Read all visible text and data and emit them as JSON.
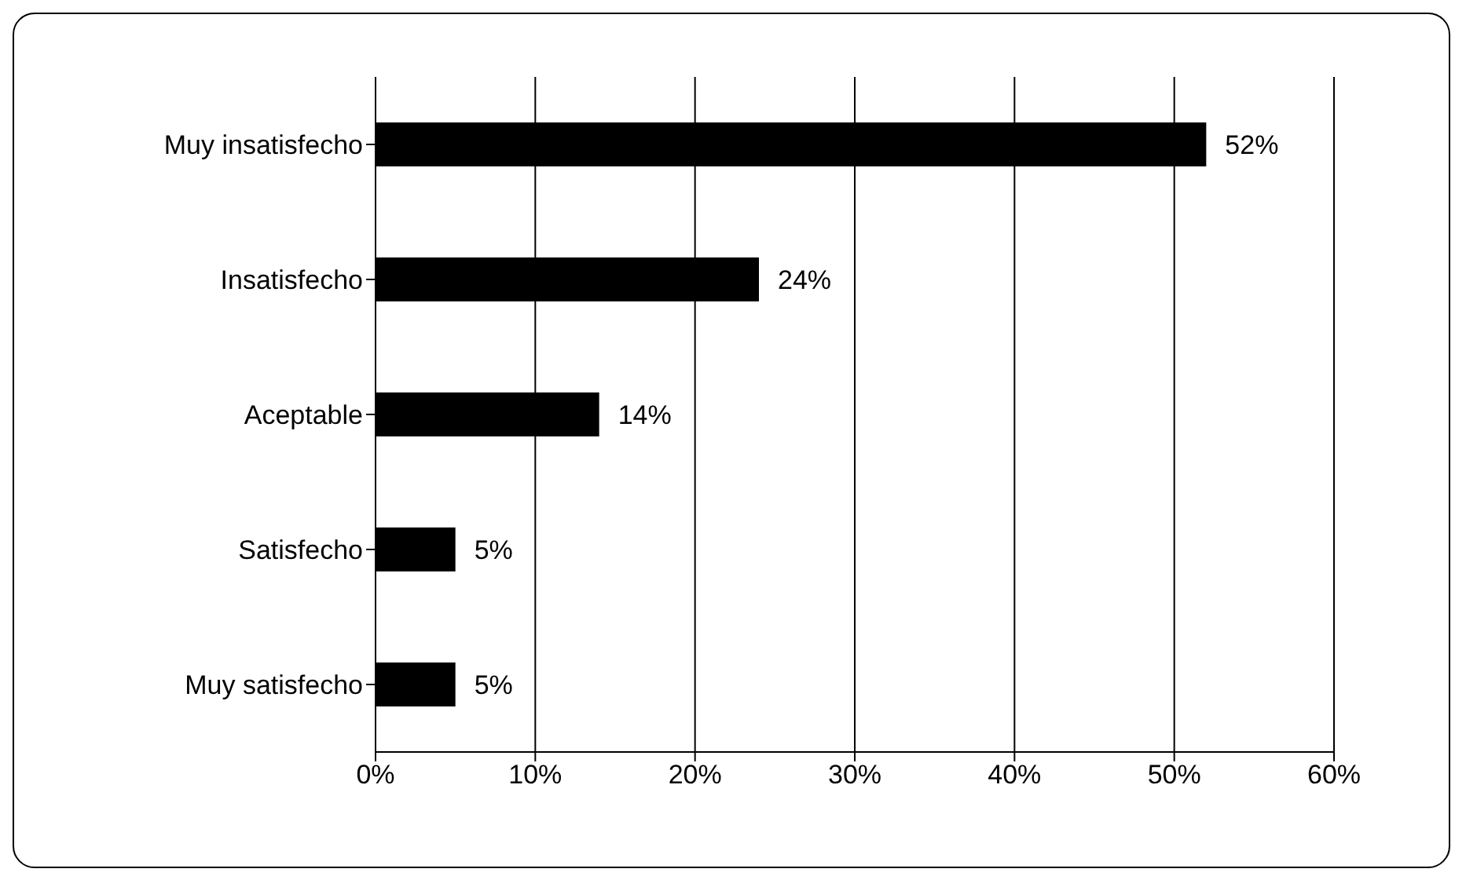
{
  "chart_data": {
    "type": "bar",
    "orientation": "horizontal",
    "categories": [
      "Muy insatisfecho",
      "Insatisfecho",
      "Aceptable",
      "Satisfecho",
      "Muy satisfecho"
    ],
    "values": [
      52,
      24,
      14,
      5,
      5
    ],
    "value_labels": [
      "52%",
      "24%",
      "14%",
      "5%",
      "5%"
    ],
    "color": "#000000",
    "xlim": [
      0,
      60
    ],
    "xticks": [
      {
        "value": 0,
        "label": "0%"
      },
      {
        "value": 10,
        "label": "10%"
      },
      {
        "value": 20,
        "label": "20%"
      },
      {
        "value": 30,
        "label": "30%"
      },
      {
        "value": 40,
        "label": "40%"
      },
      {
        "value": 50,
        "label": "50%"
      },
      {
        "value": 60,
        "label": "60%"
      }
    ],
    "grid": "x"
  }
}
